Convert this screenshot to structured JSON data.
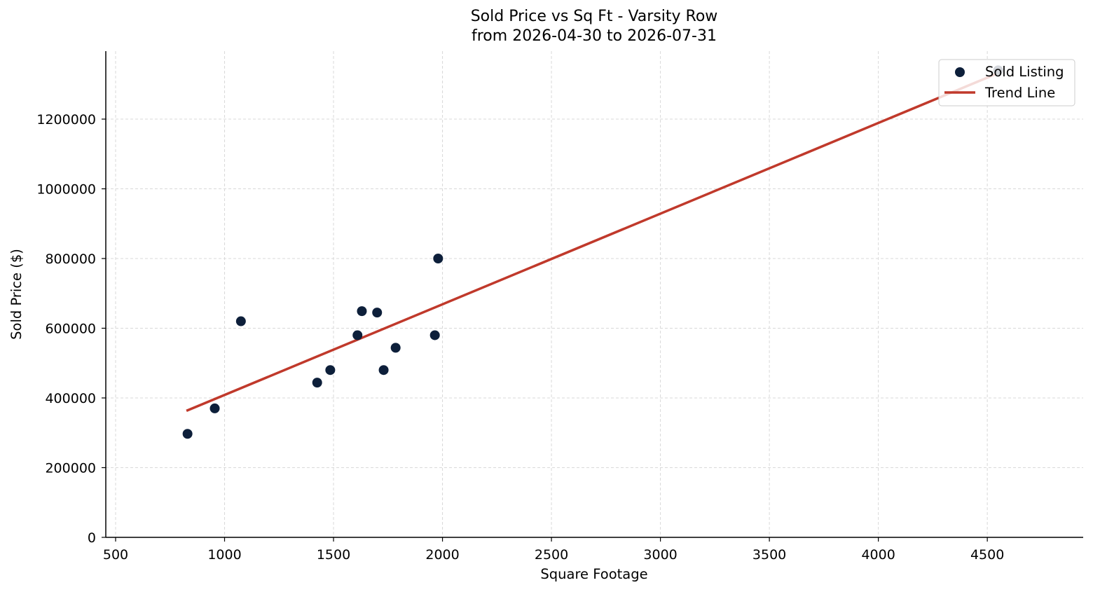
{
  "chart_data": {
    "type": "scatter",
    "title_line1": "Sold Price vs Sq Ft - Varsity Row",
    "title_line2": "from 2026-04-30 to 2026-07-31",
    "xlabel": "Square Footage",
    "ylabel": "Sold Price ($)",
    "xlim": [
      455,
      4940
    ],
    "ylim": [
      0,
      1395000
    ],
    "xticks": [
      500,
      1000,
      1500,
      2000,
      2500,
      3000,
      3500,
      4000,
      4500
    ],
    "yticks": [
      0,
      200000,
      400000,
      600000,
      800000,
      1000000,
      1200000
    ],
    "grid": true,
    "legend_position": "top-right",
    "series": [
      {
        "name": "Sold Listing",
        "kind": "scatter",
        "color": "#0d1f3a",
        "points": [
          {
            "x": 830,
            "y": 297000
          },
          {
            "x": 955,
            "y": 370000
          },
          {
            "x": 1075,
            "y": 620000
          },
          {
            "x": 1425,
            "y": 444000
          },
          {
            "x": 1485,
            "y": 480000
          },
          {
            "x": 1610,
            "y": 580000
          },
          {
            "x": 1630,
            "y": 649000
          },
          {
            "x": 1700,
            "y": 645000
          },
          {
            "x": 1730,
            "y": 480000
          },
          {
            "x": 1785,
            "y": 544000
          },
          {
            "x": 1965,
            "y": 580000
          },
          {
            "x": 1980,
            "y": 800000
          },
          {
            "x": 4550,
            "y": 1340000
          }
        ]
      },
      {
        "name": "Trend Line",
        "kind": "line",
        "color": "#c0392b",
        "points": [
          {
            "x": 825,
            "y": 363000
          },
          {
            "x": 4550,
            "y": 1332000
          }
        ]
      }
    ]
  }
}
